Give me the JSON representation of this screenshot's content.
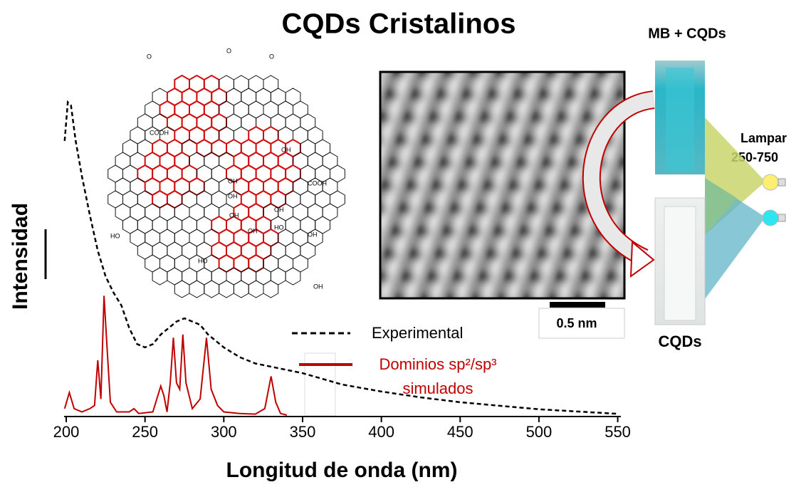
{
  "chart_data": {
    "type": "line",
    "title": "CQDs Cristalinos",
    "x_label": "Longitud de onda (nm)",
    "y_label": "Intensidad",
    "xlim": [
      199,
      552
    ],
    "xticks": [
      200,
      250,
      300,
      350,
      400,
      450,
      500,
      550
    ],
    "ylim": [
      0,
      1
    ],
    "legend": "center",
    "series": [
      {
        "name": "Experimental",
        "color": "#000000",
        "dash": true,
        "x": [
          199,
          201,
          203,
          206,
          210,
          215,
          220,
          225,
          230,
          235,
          240,
          245,
          250,
          255,
          260,
          265,
          270,
          275,
          280,
          285,
          290,
          300,
          310,
          320,
          330,
          350,
          375,
          400,
          425,
          450,
          475,
          500,
          525,
          550
        ],
        "values": [
          0.85,
          0.97,
          0.96,
          0.85,
          0.74,
          0.62,
          0.51,
          0.43,
          0.38,
          0.34,
          0.27,
          0.22,
          0.21,
          0.22,
          0.25,
          0.27,
          0.29,
          0.3,
          0.29,
          0.28,
          0.25,
          0.21,
          0.18,
          0.16,
          0.15,
          0.13,
          0.095,
          0.073,
          0.055,
          0.04,
          0.029,
          0.018,
          0.011,
          0.004
        ]
      },
      {
        "name": "Dominios sp²/sp³ simulados",
        "color": "#c00000",
        "dash": false,
        "x": [
          199,
          202,
          205,
          210,
          215,
          218,
          220,
          222,
          224,
          226,
          228,
          232,
          240,
          243,
          246,
          255,
          260,
          262,
          264,
          266,
          268,
          270,
          272,
          274,
          276,
          280,
          285,
          289,
          292,
          296,
          300,
          310,
          320,
          326,
          330,
          333,
          336,
          340
        ],
        "values": [
          0.02,
          0.07,
          0.02,
          0.01,
          0.02,
          0.03,
          0.17,
          0.05,
          0.37,
          0.2,
          0.04,
          0.01,
          0.01,
          0.02,
          0.005,
          0.01,
          0.09,
          0.06,
          0.01,
          0.1,
          0.24,
          0.1,
          0.08,
          0.25,
          0.1,
          0.02,
          0.05,
          0.24,
          0.08,
          0.03,
          0.01,
          0.005,
          0.003,
          0.02,
          0.12,
          0.04,
          0.005,
          0
        ]
      }
    ]
  },
  "molecule_labels": [
    "COOH",
    "OH",
    "COOH",
    "HO",
    "OH",
    "OH",
    "OH",
    "OH",
    "HO",
    "OH",
    "OH",
    "HO",
    "OH",
    "O",
    "O",
    "O"
  ],
  "image_labels": {
    "scale_bar": "0.5 nm",
    "top_cuvette": "MB + CQDs",
    "bottom_cuvette": "CQDs",
    "lamp_line1": "Lampar",
    "lamp_line2": "250-750"
  }
}
